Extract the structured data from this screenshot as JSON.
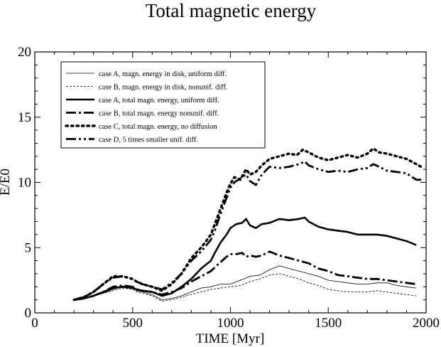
{
  "chart_data": {
    "type": "line",
    "title": "Total magnetic energy",
    "xlabel": "TIME [Myr]",
    "ylabel": "E/E0",
    "xlim": [
      0,
      2000
    ],
    "ylim": [
      0,
      20
    ],
    "xticks": [
      0,
      500,
      1000,
      1500,
      2000
    ],
    "yticks": [
      0,
      5,
      10,
      15,
      20
    ],
    "grid": false,
    "legend_position": "top-left",
    "series": [
      {
        "name": "case A, magn. energy in disk, uniform diff.",
        "style": "thin-solid",
        "x": [
          200,
          250,
          300,
          350,
          400,
          450,
          500,
          520,
          550,
          600,
          650,
          700,
          750,
          800,
          850,
          900,
          950,
          1000,
          1050,
          1100,
          1150,
          1200,
          1250,
          1300,
          1350,
          1400,
          1450,
          1500,
          1550,
          1600,
          1650,
          1700,
          1750,
          1800,
          1850,
          1900,
          1950
        ],
        "y": [
          1.0,
          1.1,
          1.3,
          1.5,
          1.8,
          2.0,
          1.9,
          1.7,
          1.6,
          1.4,
          1.0,
          1.1,
          1.3,
          1.6,
          1.9,
          2.0,
          2.2,
          2.2,
          2.5,
          2.8,
          2.9,
          3.3,
          3.6,
          3.4,
          3.2,
          3.0,
          2.8,
          2.5,
          2.4,
          2.3,
          2.2,
          2.2,
          2.3,
          2.3,
          2.1,
          2.0,
          1.9
        ]
      },
      {
        "name": "case B, magn. energy in disk, nonunif. diff.",
        "style": "thin-dashed",
        "x": [
          200,
          250,
          300,
          350,
          400,
          450,
          500,
          520,
          550,
          600,
          650,
          700,
          750,
          800,
          850,
          900,
          950,
          1000,
          1050,
          1100,
          1150,
          1200,
          1250,
          1300,
          1350,
          1400,
          1450,
          1500,
          1550,
          1600,
          1650,
          1700,
          1750,
          1800,
          1850,
          1900,
          1950
        ],
        "y": [
          1.0,
          1.1,
          1.3,
          1.5,
          1.7,
          1.9,
          1.8,
          1.6,
          1.5,
          1.3,
          0.9,
          1.0,
          1.2,
          1.4,
          1.6,
          1.8,
          1.9,
          2.0,
          2.1,
          2.4,
          2.6,
          2.9,
          3.0,
          2.8,
          2.6,
          2.3,
          2.1,
          1.8,
          1.7,
          1.6,
          1.6,
          1.6,
          1.7,
          1.6,
          1.5,
          1.4,
          1.3
        ]
      },
      {
        "name": "case A, total magn. energy, uniform diff.",
        "style": "thick-solid",
        "x": [
          200,
          250,
          300,
          350,
          400,
          450,
          500,
          520,
          550,
          600,
          650,
          700,
          750,
          800,
          850,
          900,
          920,
          950,
          980,
          1000,
          1030,
          1060,
          1080,
          1100,
          1130,
          1160,
          1200,
          1250,
          1300,
          1350,
          1380,
          1400,
          1450,
          1500,
          1550,
          1600,
          1650,
          1700,
          1750,
          1800,
          1850,
          1900,
          1950
        ],
        "y": [
          1.0,
          1.1,
          1.3,
          1.6,
          1.9,
          2.0,
          1.9,
          1.8,
          1.7,
          1.6,
          1.3,
          1.5,
          2.0,
          2.6,
          3.4,
          4.0,
          4.6,
          5.4,
          6.0,
          6.5,
          6.8,
          6.9,
          7.2,
          6.7,
          6.5,
          6.8,
          6.9,
          7.2,
          7.1,
          7.2,
          7.3,
          7.0,
          6.6,
          6.4,
          6.3,
          6.2,
          6.0,
          6.0,
          6.0,
          5.9,
          5.7,
          5.5,
          5.2
        ]
      },
      {
        "name": "case B, total magn. energy nonunif. diff.",
        "style": "thick-dashdot",
        "x": [
          200,
          250,
          300,
          350,
          400,
          450,
          500,
          520,
          550,
          600,
          650,
          700,
          750,
          800,
          850,
          900,
          950,
          980,
          1000,
          1030,
          1060,
          1080,
          1100,
          1130,
          1160,
          1200,
          1250,
          1300,
          1350,
          1400,
          1450,
          1500,
          1550,
          1600,
          1650,
          1700,
          1750,
          1800,
          1850,
          1900,
          1950
        ],
        "y": [
          1.0,
          1.1,
          1.3,
          1.6,
          2.0,
          2.1,
          2.0,
          1.8,
          1.7,
          1.6,
          1.4,
          1.6,
          1.9,
          2.4,
          2.8,
          3.2,
          3.9,
          4.3,
          4.5,
          4.5,
          4.6,
          4.3,
          4.4,
          4.3,
          4.4,
          4.7,
          4.4,
          4.2,
          4.0,
          3.8,
          3.4,
          3.2,
          2.9,
          2.8,
          2.7,
          2.6,
          2.6,
          2.5,
          2.4,
          2.3,
          2.2
        ]
      },
      {
        "name": "case C, total magn. energy, no diffusion",
        "style": "thick-dotted",
        "x": [
          200,
          250,
          300,
          350,
          400,
          450,
          500,
          520,
          550,
          600,
          650,
          700,
          750,
          800,
          850,
          900,
          920,
          950,
          980,
          1000,
          1020,
          1050,
          1080,
          1100,
          1130,
          1160,
          1200,
          1250,
          1300,
          1340,
          1370,
          1400,
          1450,
          1500,
          1550,
          1600,
          1650,
          1700,
          1730,
          1760,
          1800,
          1850,
          1900,
          1950,
          1975
        ],
        "y": [
          1.0,
          1.2,
          1.6,
          2.2,
          2.8,
          2.8,
          2.6,
          2.4,
          2.2,
          2.0,
          1.7,
          2.2,
          3.0,
          4.2,
          5.0,
          6.0,
          6.8,
          8.0,
          9.2,
          9.9,
          10.4,
          10.2,
          11.0,
          10.6,
          10.8,
          11.3,
          11.8,
          12.0,
          12.2,
          12.1,
          12.5,
          12.3,
          11.9,
          11.7,
          11.9,
          12.1,
          11.9,
          12.2,
          12.6,
          12.3,
          12.2,
          12.0,
          11.8,
          11.4,
          11.2
        ]
      },
      {
        "name": "case D, 5 times smaller unif. diff.",
        "style": "thick-dashdotdot",
        "x": [
          200,
          250,
          300,
          350,
          400,
          450,
          500,
          520,
          550,
          600,
          650,
          700,
          750,
          800,
          850,
          900,
          920,
          950,
          980,
          1000,
          1020,
          1050,
          1080,
          1100,
          1130,
          1160,
          1200,
          1250,
          1300,
          1350,
          1380,
          1400,
          1450,
          1500,
          1550,
          1600,
          1650,
          1700,
          1730,
          1760,
          1800,
          1850,
          1900,
          1950,
          1975
        ],
        "y": [
          1.0,
          1.2,
          1.6,
          2.2,
          2.7,
          2.8,
          2.6,
          2.4,
          2.2,
          2.0,
          1.8,
          2.3,
          3.0,
          4.0,
          4.7,
          5.6,
          6.3,
          7.6,
          8.8,
          9.6,
          10.0,
          10.3,
          10.6,
          10.1,
          9.8,
          10.6,
          11.2,
          11.1,
          11.2,
          11.4,
          11.6,
          11.3,
          11.0,
          10.8,
          10.9,
          10.8,
          11.0,
          11.1,
          11.4,
          11.2,
          10.9,
          10.8,
          10.7,
          10.2,
          10.2
        ]
      }
    ]
  }
}
